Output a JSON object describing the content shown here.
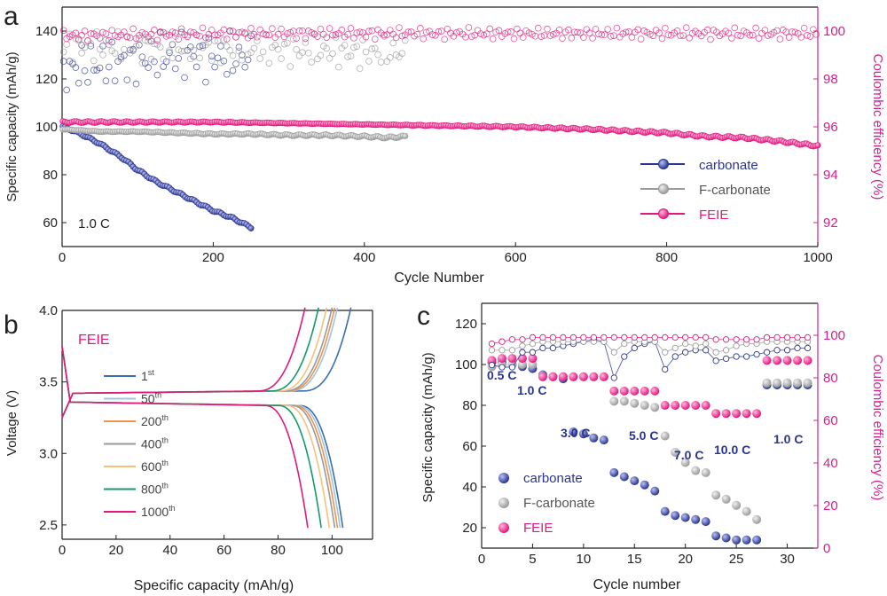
{
  "colors": {
    "carbonate": "#2a3590",
    "fcarbonate": "#9a9a9a",
    "feie": "#e0197d",
    "axis_right": "#d3208c"
  },
  "chart_data": [
    {
      "panel": "a",
      "type": "scatter",
      "title": "",
      "xlabel": "Cycle Number",
      "ylabel": "Specific capacity (mAh/g)",
      "y2label": "Coulombic efficiency (%)",
      "xlim": [
        0,
        1000
      ],
      "ylim": [
        50,
        150
      ],
      "y2lim": [
        91,
        101
      ],
      "xticks": [
        "0",
        "200",
        "400",
        "600",
        "800",
        "1000"
      ],
      "yticks": [
        "60",
        "80",
        "100",
        "120",
        "140"
      ],
      "y2ticks": [
        "92",
        "94",
        "96",
        "98",
        "100"
      ],
      "annotation": "1.0 C",
      "legend": [
        "carbonate",
        "F-carbonate",
        "FEIE"
      ],
      "series": [
        {
          "name": "carbonate",
          "axis": "y",
          "kind": "capacity",
          "x": [
            1,
            10,
            25,
            50,
            80,
            100,
            125,
            150,
            175,
            200,
            225,
            250
          ],
          "values": [
            100,
            99,
            97,
            93,
            87,
            82,
            77,
            73,
            69,
            65,
            62,
            58
          ]
        },
        {
          "name": "F-carbonate",
          "axis": "y",
          "kind": "capacity",
          "x": [
            1,
            50,
            100,
            150,
            200,
            250,
            300,
            350,
            400,
            430,
            455
          ],
          "values": [
            99,
            98,
            98,
            97.5,
            97,
            97,
            96.5,
            96.5,
            96,
            95.5,
            96
          ]
        },
        {
          "name": "FEIE",
          "axis": "y",
          "kind": "capacity",
          "x": [
            1,
            50,
            100,
            200,
            300,
            400,
            500,
            600,
            700,
            800,
            850,
            900,
            950,
            1000
          ],
          "values": [
            102,
            102,
            102,
            102,
            101.5,
            101,
            100.5,
            100,
            99,
            97.5,
            96,
            95.5,
            94,
            92
          ]
        },
        {
          "name": "carbonate CE",
          "axis": "y2",
          "kind": "ce",
          "x": [
            1,
            20,
            50,
            80,
            100,
            125,
            150,
            175,
            200,
            225,
            250
          ],
          "values": [
            98.3,
            98.5,
            98.6,
            98.7,
            98.8,
            98.9,
            99,
            99,
            98.9,
            98.9,
            98.9
          ]
        },
        {
          "name": "F-carbonate CE",
          "axis": "y2",
          "kind": "ce",
          "x": [
            1,
            100,
            200,
            300,
            400,
            455
          ],
          "values": [
            99.4,
            99.3,
            99.3,
            99.2,
            99.1,
            99.1
          ]
        },
        {
          "name": "FEIE CE",
          "axis": "y2",
          "kind": "ce",
          "x": [
            1,
            200,
            400,
            600,
            800,
            900,
            1000
          ],
          "values": [
            99.8,
            99.9,
            99.9,
            99.9,
            99.9,
            99.9,
            99.9
          ]
        }
      ]
    },
    {
      "panel": "b",
      "type": "line",
      "title": "",
      "xlabel": "Specific capacity (mAh/g)",
      "ylabel": "Voltage (V)",
      "xlim": [
        0,
        115
      ],
      "ylim": [
        2.4,
        4.0
      ],
      "xticks": [
        "0",
        "20",
        "40",
        "60",
        "80",
        "100"
      ],
      "yticks": [
        "2.5",
        "3.0",
        "3.5",
        "4.0"
      ],
      "annotation": "FEIE",
      "legend_labels": [
        {
          "base": "1",
          "sup": "st"
        },
        {
          "base": "50",
          "sup": "th"
        },
        {
          "base": "200",
          "sup": "th"
        },
        {
          "base": "400",
          "sup": "th"
        },
        {
          "base": "600",
          "sup": "th"
        },
        {
          "base": "800",
          "sup": "th"
        },
        {
          "base": "1000",
          "sup": "th"
        }
      ],
      "series": [
        {
          "name": "1st",
          "color": "#3a6fb0",
          "charge_end": 107,
          "discharge_end": 104
        },
        {
          "name": "50th",
          "color": "#9ec6e4",
          "charge_end": 102,
          "discharge_end": 103
        },
        {
          "name": "200th",
          "color": "#f0934c",
          "charge_end": 101,
          "discharge_end": 102
        },
        {
          "name": "400th",
          "color": "#9a9a9a",
          "charge_end": 100,
          "discharge_end": 101
        },
        {
          "name": "600th",
          "color": "#f4c27e",
          "charge_end": 98,
          "discharge_end": 99
        },
        {
          "name": "800th",
          "color": "#159a6b",
          "charge_end": 95,
          "discharge_end": 96
        },
        {
          "name": "1000th",
          "color": "#e0197d",
          "charge_end": 90,
          "discharge_end": 91
        }
      ]
    },
    {
      "panel": "c",
      "type": "scatter",
      "title": "",
      "xlabel": "Cycle number",
      "ylabel": "Specific capacity (mAh/g)",
      "y2label": "Coulombic efficiency (%)",
      "xlim": [
        0,
        33
      ],
      "ylim": [
        10,
        130
      ],
      "y2lim": [
        0,
        115
      ],
      "xticks": [
        "0",
        "5",
        "10",
        "15",
        "20",
        "25",
        "30"
      ],
      "yticks": [
        "20",
        "40",
        "60",
        "80",
        "100",
        "120"
      ],
      "y2ticks": [
        "0",
        "20",
        "40",
        "60",
        "80",
        "100"
      ],
      "rate_labels": [
        "0.5 C",
        "1.0 C",
        "3.0 C",
        "5.0 C",
        "7.0 C",
        "10.0 C",
        "1.0 C"
      ],
      "legend": [
        "carbonate",
        "F-carbonate",
        "FEIE"
      ],
      "x": [
        1,
        2,
        3,
        4,
        5,
        6,
        7,
        8,
        9,
        10,
        11,
        12,
        13,
        14,
        15,
        16,
        17,
        18,
        19,
        20,
        21,
        22,
        23,
        24,
        25,
        26,
        27,
        28,
        29,
        30,
        31,
        32
      ],
      "series": [
        {
          "name": "carbonate",
          "axis": "y",
          "values": [
            101,
            101,
            100,
            99,
            98,
            95,
            94,
            93,
            67,
            66,
            64,
            63,
            47,
            45,
            43,
            41,
            38,
            28,
            26,
            25,
            24,
            23,
            16,
            15,
            14,
            14,
            14,
            90,
            90,
            90,
            90,
            90
          ]
        },
        {
          "name": "F-carbonate",
          "axis": "y",
          "values": [
            99,
            100,
            100,
            100,
            100,
            94,
            94,
            94,
            94,
            94,
            94,
            94,
            82,
            82,
            81,
            80,
            79,
            65,
            57,
            52,
            48,
            47,
            36,
            34,
            31,
            28,
            24,
            91,
            91,
            91,
            91,
            91
          ]
        },
        {
          "name": "FEIE",
          "axis": "y",
          "values": [
            102,
            103,
            103,
            103,
            103,
            94,
            94,
            94,
            94,
            94,
            94,
            94,
            87,
            87,
            87,
            87,
            87,
            80,
            80,
            80,
            80,
            80,
            76,
            76,
            76,
            76,
            76,
            102,
            102,
            102,
            102,
            102
          ]
        },
        {
          "name": "carbonate CE",
          "axis": "y2",
          "values": [
            86,
            85,
            85,
            92,
            92,
            94,
            94,
            95,
            96,
            97,
            98,
            97,
            80,
            90,
            94,
            96,
            97,
            84,
            90,
            92,
            93,
            93,
            88,
            89,
            90,
            90,
            91,
            92,
            93,
            93,
            94,
            94
          ]
        },
        {
          "name": "F-carbonate CE",
          "axis": "y2",
          "values": [
            93,
            93,
            93,
            95,
            96,
            97,
            97,
            97,
            97,
            97,
            97,
            97,
            92,
            96,
            97,
            97,
            97,
            92,
            94,
            96,
            95,
            96,
            92,
            93,
            95,
            96,
            96,
            97,
            97,
            97,
            97,
            97
          ]
        },
        {
          "name": "FEIE CE",
          "axis": "y2",
          "values": [
            96,
            97,
            98,
            98,
            99,
            99,
            99,
            99,
            99,
            99,
            99,
            99,
            99,
            99,
            99,
            99,
            99,
            99,
            99,
            99,
            99,
            99,
            98,
            98,
            98,
            98,
            98,
            99,
            99,
            99,
            99,
            99
          ]
        }
      ]
    }
  ],
  "panel_labels": {
    "a": "a",
    "b": "b",
    "c": "c"
  }
}
